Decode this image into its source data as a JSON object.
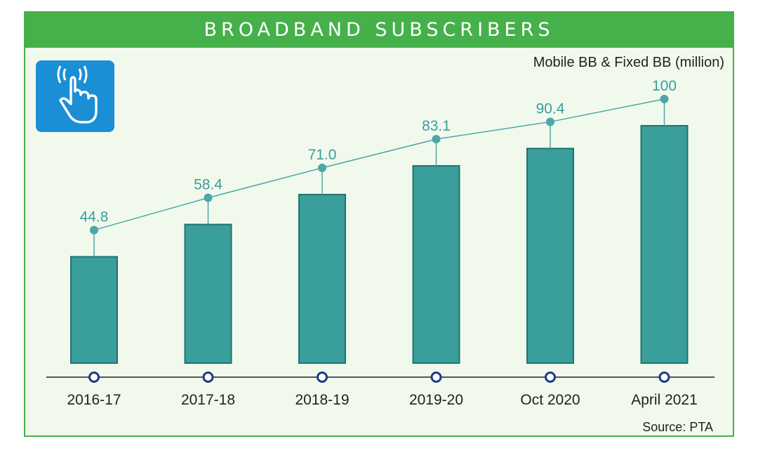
{
  "header": {
    "title": "BROADBAND SUBSCRIBERS"
  },
  "unit_label": "Mobile BB & Fixed BB (million)",
  "source": "Source: PTA",
  "icon": "touch-hand-signal-icon",
  "colors": {
    "header": "#46b04a",
    "background": "#f1f9ed",
    "bar": "#3a9e9b",
    "line": "#4ca7a5",
    "label": "#3a9e9b",
    "axis_dot": "#1d3a8a"
  },
  "chart_data": {
    "type": "bar",
    "categories": [
      "2016-17",
      "2017-18",
      "2018-19",
      "2019-20",
      "Oct 2020",
      "April 2021"
    ],
    "values": [
      44.8,
      58.4,
      71.0,
      83.1,
      90.4,
      100
    ],
    "value_labels": [
      "44.8",
      "58.4",
      "71.0",
      "83.1",
      "90.4",
      "100"
    ],
    "title": "BROADBAND SUBSCRIBERS",
    "ylabel": "Mobile BB & Fixed BB (million)",
    "ylim": [
      0,
      110
    ],
    "grid": false,
    "legend": "none"
  }
}
